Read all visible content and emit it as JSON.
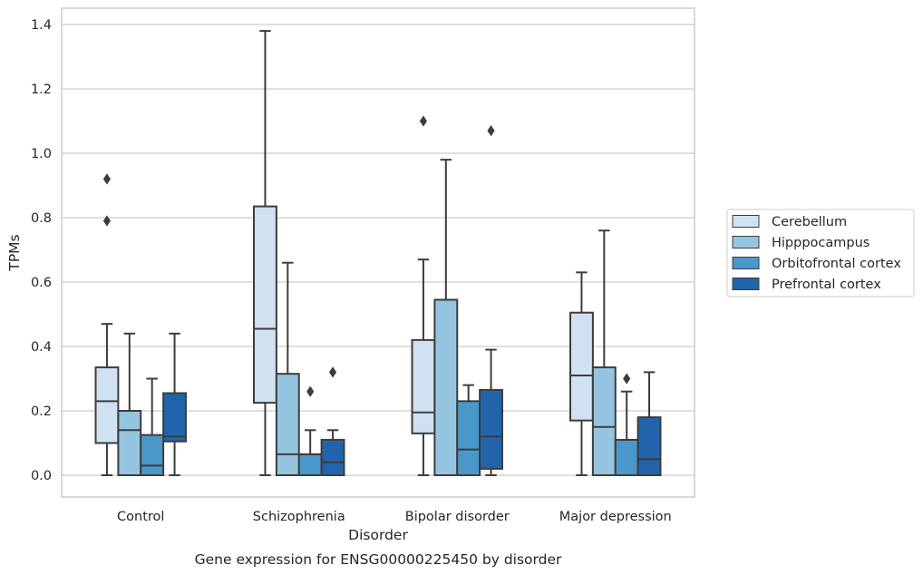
{
  "chart_data": {
    "type": "box",
    "title": "",
    "caption": "Gene expression for ENSG00000225450 by disorder",
    "xlabel": "Disorder",
    "ylabel": "TPMs",
    "ylim": [
      -0.067,
      1.45
    ],
    "yticks": [
      0.0,
      0.2,
      0.4,
      0.6,
      0.8,
      1.0,
      1.2,
      1.4
    ],
    "ytick_labels": [
      "0.0",
      "0.2",
      "0.4",
      "0.6",
      "0.8",
      "1.0",
      "1.2",
      "1.4"
    ],
    "grid": "horizontal",
    "legend_position": "right",
    "categories": [
      "Control",
      "Schizophrenia",
      "Bipolar disorder",
      "Major depression"
    ],
    "series": [
      {
        "name": "Cerebellum",
        "color": "#d0e1f2",
        "boxes": [
          {
            "whislo": 0.0,
            "q1": 0.1,
            "med": 0.23,
            "q3": 0.335,
            "whishi": 0.47,
            "fliers": [
              0.79,
              0.92
            ]
          },
          {
            "whislo": 0.0,
            "q1": 0.225,
            "med": 0.455,
            "q3": 0.835,
            "whishi": 1.38,
            "fliers": []
          },
          {
            "whislo": 0.0,
            "q1": 0.13,
            "med": 0.195,
            "q3": 0.42,
            "whishi": 0.67,
            "fliers": [
              1.1
            ]
          },
          {
            "whislo": 0.0,
            "q1": 0.17,
            "med": 0.31,
            "q3": 0.505,
            "whishi": 0.63,
            "fliers": []
          }
        ]
      },
      {
        "name": "Hipppocampus",
        "color": "#94c4df",
        "boxes": [
          {
            "whislo": 0.0,
            "q1": 0.0,
            "med": 0.14,
            "q3": 0.2,
            "whishi": 0.44,
            "fliers": []
          },
          {
            "whislo": 0.0,
            "q1": 0.0,
            "med": 0.065,
            "q3": 0.315,
            "whishi": 0.66,
            "fliers": []
          },
          {
            "whislo": 0.0,
            "q1": 0.0,
            "med": 0.545,
            "q3": 0.545,
            "whishi": 0.98,
            "fliers": []
          },
          {
            "whislo": 0.0,
            "q1": 0.0,
            "med": 0.15,
            "q3": 0.335,
            "whishi": 0.76,
            "fliers": []
          }
        ]
      },
      {
        "name": "Orbitofrontal cortex",
        "color": "#4a98c9",
        "boxes": [
          {
            "whislo": 0.0,
            "q1": 0.0,
            "med": 0.03,
            "q3": 0.125,
            "whishi": 0.3,
            "fliers": []
          },
          {
            "whislo": 0.0,
            "q1": 0.0,
            "med": 0.065,
            "q3": 0.065,
            "whishi": 0.14,
            "fliers": [
              0.26
            ]
          },
          {
            "whislo": 0.0,
            "q1": 0.0,
            "med": 0.08,
            "q3": 0.23,
            "whishi": 0.28,
            "fliers": []
          },
          {
            "whislo": 0.0,
            "q1": 0.0,
            "med": 0.11,
            "q3": 0.11,
            "whishi": 0.26,
            "fliers": [
              0.3
            ]
          }
        ]
      },
      {
        "name": "Prefrontal cortex",
        "color": "#2164ab",
        "boxes": [
          {
            "whislo": 0.0,
            "q1": 0.105,
            "med": 0.12,
            "q3": 0.255,
            "whishi": 0.44,
            "fliers": []
          },
          {
            "whislo": 0.0,
            "q1": 0.0,
            "med": 0.04,
            "q3": 0.11,
            "whishi": 0.14,
            "fliers": [
              0.32
            ]
          },
          {
            "whislo": 0.0,
            "q1": 0.02,
            "med": 0.12,
            "q3": 0.265,
            "whishi": 0.39,
            "fliers": [
              1.07
            ]
          },
          {
            "whislo": 0.0,
            "q1": 0.0,
            "med": 0.05,
            "q3": 0.18,
            "whishi": 0.32,
            "fliers": []
          }
        ]
      }
    ]
  }
}
